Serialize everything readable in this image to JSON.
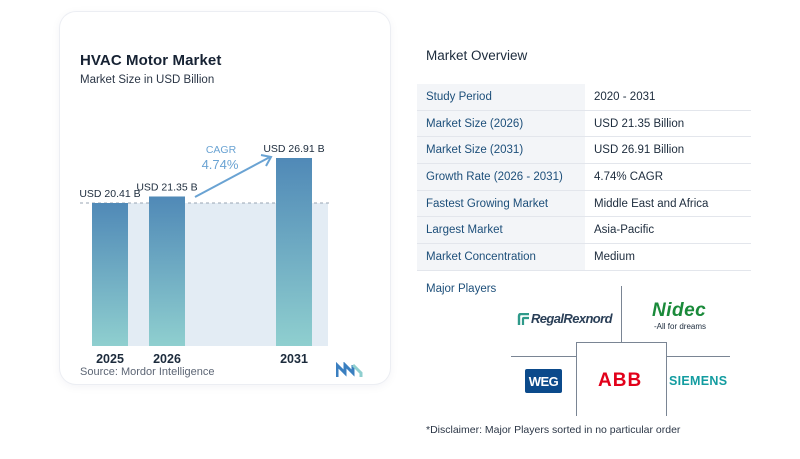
{
  "chart_data": {
    "type": "bar",
    "title": "HVAC Motor Market",
    "subtitle": "Market Size in USD Billion",
    "categories": [
      "2025",
      "2026",
      "2031"
    ],
    "values": [
      20.41,
      21.35,
      26.91
    ],
    "value_labels": [
      "USD 20.41 B",
      "USD 21.35 B",
      "USD 26.91 B"
    ],
    "cagr_label": "CAGR",
    "cagr_value": "4.74%",
    "colors": {
      "bar_top": "#5089b7",
      "bar_bottom": "#8fcfcf",
      "band": "#e3ecf4",
      "dashed": "#9aa6b3",
      "arrow": "#6aa3d3"
    },
    "legend": "none",
    "grid": false
  },
  "chart_data_header": {
    "source": "Source:  Mordor Intelligence"
  },
  "overview": {
    "title": "Market Overview",
    "rows": [
      {
        "key": "Study Period",
        "value": "2020 - 2031"
      },
      {
        "key": "Market Size (2026)",
        "value": "USD 21.35 Billion"
      },
      {
        "key": "Market Size (2031)",
        "value": "USD 26.91 Billion"
      },
      {
        "key": "Growth Rate (2026 - 2031)",
        "value": "4.74% CAGR"
      },
      {
        "key": "Fastest Growing Market",
        "value": "Middle East and Africa"
      },
      {
        "key": "Largest Market",
        "value": "Asia-Pacific"
      },
      {
        "key": "Market Concentration",
        "value": "Medium"
      }
    ]
  },
  "players": {
    "title": "Major Players",
    "logos": {
      "regal": "RegalRexnord",
      "nidec": "Nidec",
      "nidec_tagline": "-All for dreams",
      "weg": "WEG",
      "abb": "ABB",
      "siemens": "SIEMENS"
    }
  },
  "disclaimer": "*Disclaimer: Major Players sorted in no particular order"
}
